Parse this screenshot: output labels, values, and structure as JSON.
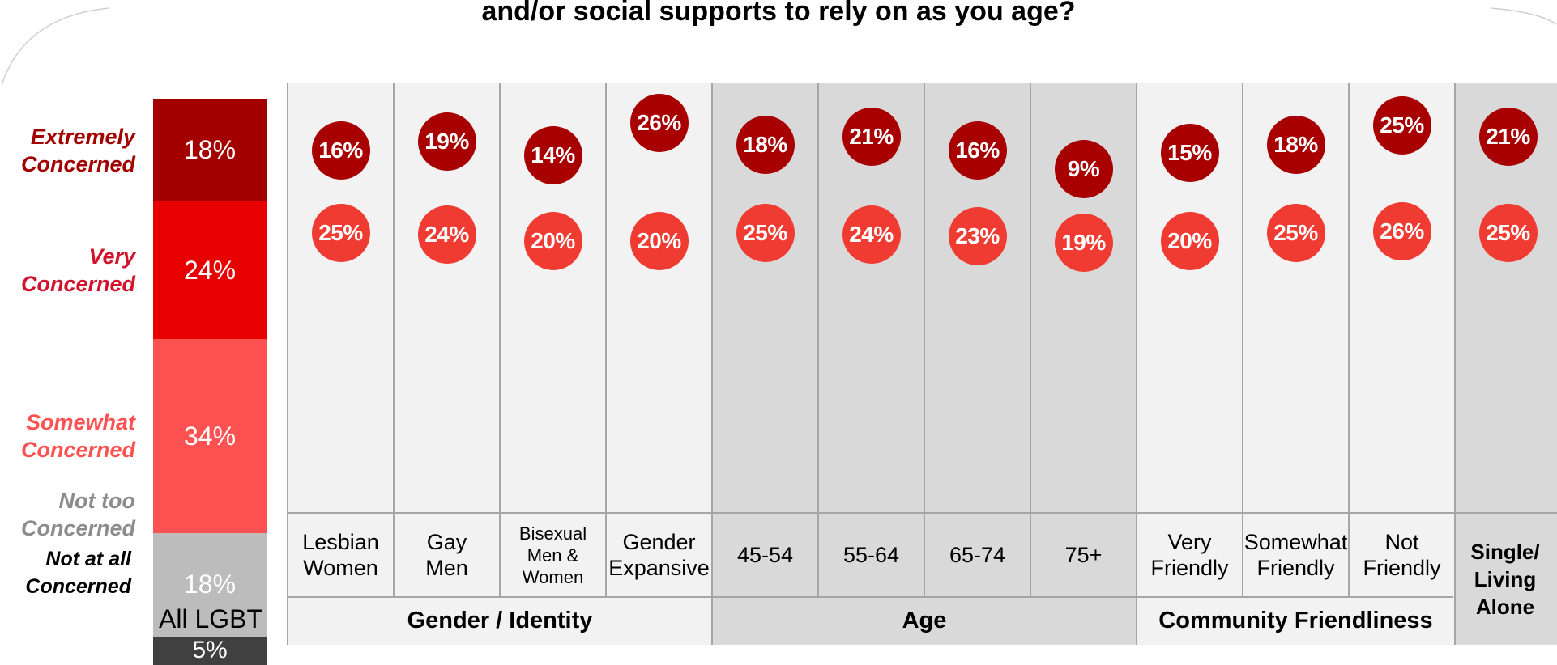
{
  "title": "and/or social supports to rely on as you age?",
  "colors": {
    "extremely": "#a30000",
    "very": "#e80000",
    "somewhat": "#fe5252",
    "not_too": "#bcbcbc",
    "not_at_all": "#404040",
    "circle_extremely": "#a80000",
    "circle_very": "#ef3b32",
    "label_extremely": "#a30000",
    "label_very": "#d0142d",
    "label_somewhat": "#fe5252",
    "label_not_too": "#8c8c8c"
  },
  "chart_data": {
    "type": "bar",
    "stacked_bar": {
      "label": "All LGBT",
      "segments": [
        {
          "name": "Extremely\nConcerned",
          "value": 18,
          "display": "18%"
        },
        {
          "name": "Very\nConcerned",
          "value": 24,
          "display": "24%"
        },
        {
          "name": "Somewhat\nConcerned",
          "value": 34,
          "display": "34%"
        },
        {
          "name": "Not too\nConcerned",
          "value": 18,
          "display": "18%"
        },
        {
          "name": "Not at all\nConcerned",
          "value": 5,
          "display": "5%"
        }
      ]
    },
    "categories": [
      "Lesbian\nWomen",
      "Gay\nMen",
      "Bisexual\nMen &\nWomen",
      "Gender\nExpansive",
      "45-54",
      "55-64",
      "65-74",
      "75+",
      "Very\nFriendly",
      "Somewhat\nFriendly",
      "Not\nFriendly",
      "Single/\nLiving\nAlone"
    ],
    "series": [
      {
        "name": "Extremely Concerned",
        "values": [
          16,
          19,
          14,
          26,
          18,
          21,
          16,
          9,
          15,
          18,
          25,
          21
        ],
        "labels": [
          "16%",
          "19%",
          "14%",
          "26%",
          "18%",
          "21%",
          "16%",
          "9%",
          "15%",
          "18%",
          "25%",
          "21%"
        ]
      },
      {
        "name": "Very Concerned",
        "values": [
          25,
          24,
          20,
          20,
          25,
          24,
          23,
          19,
          20,
          25,
          26,
          25
        ],
        "labels": [
          "25%",
          "24%",
          "20%",
          "20%",
          "25%",
          "24%",
          "23%",
          "19%",
          "20%",
          "25%",
          "26%",
          "25%"
        ]
      }
    ],
    "groups": [
      {
        "label": "Gender / Identity",
        "start": 0,
        "end": 3
      },
      {
        "label": "Age",
        "start": 4,
        "end": 7
      },
      {
        "label": "Community Friendliness",
        "start": 8,
        "end": 10
      }
    ]
  }
}
